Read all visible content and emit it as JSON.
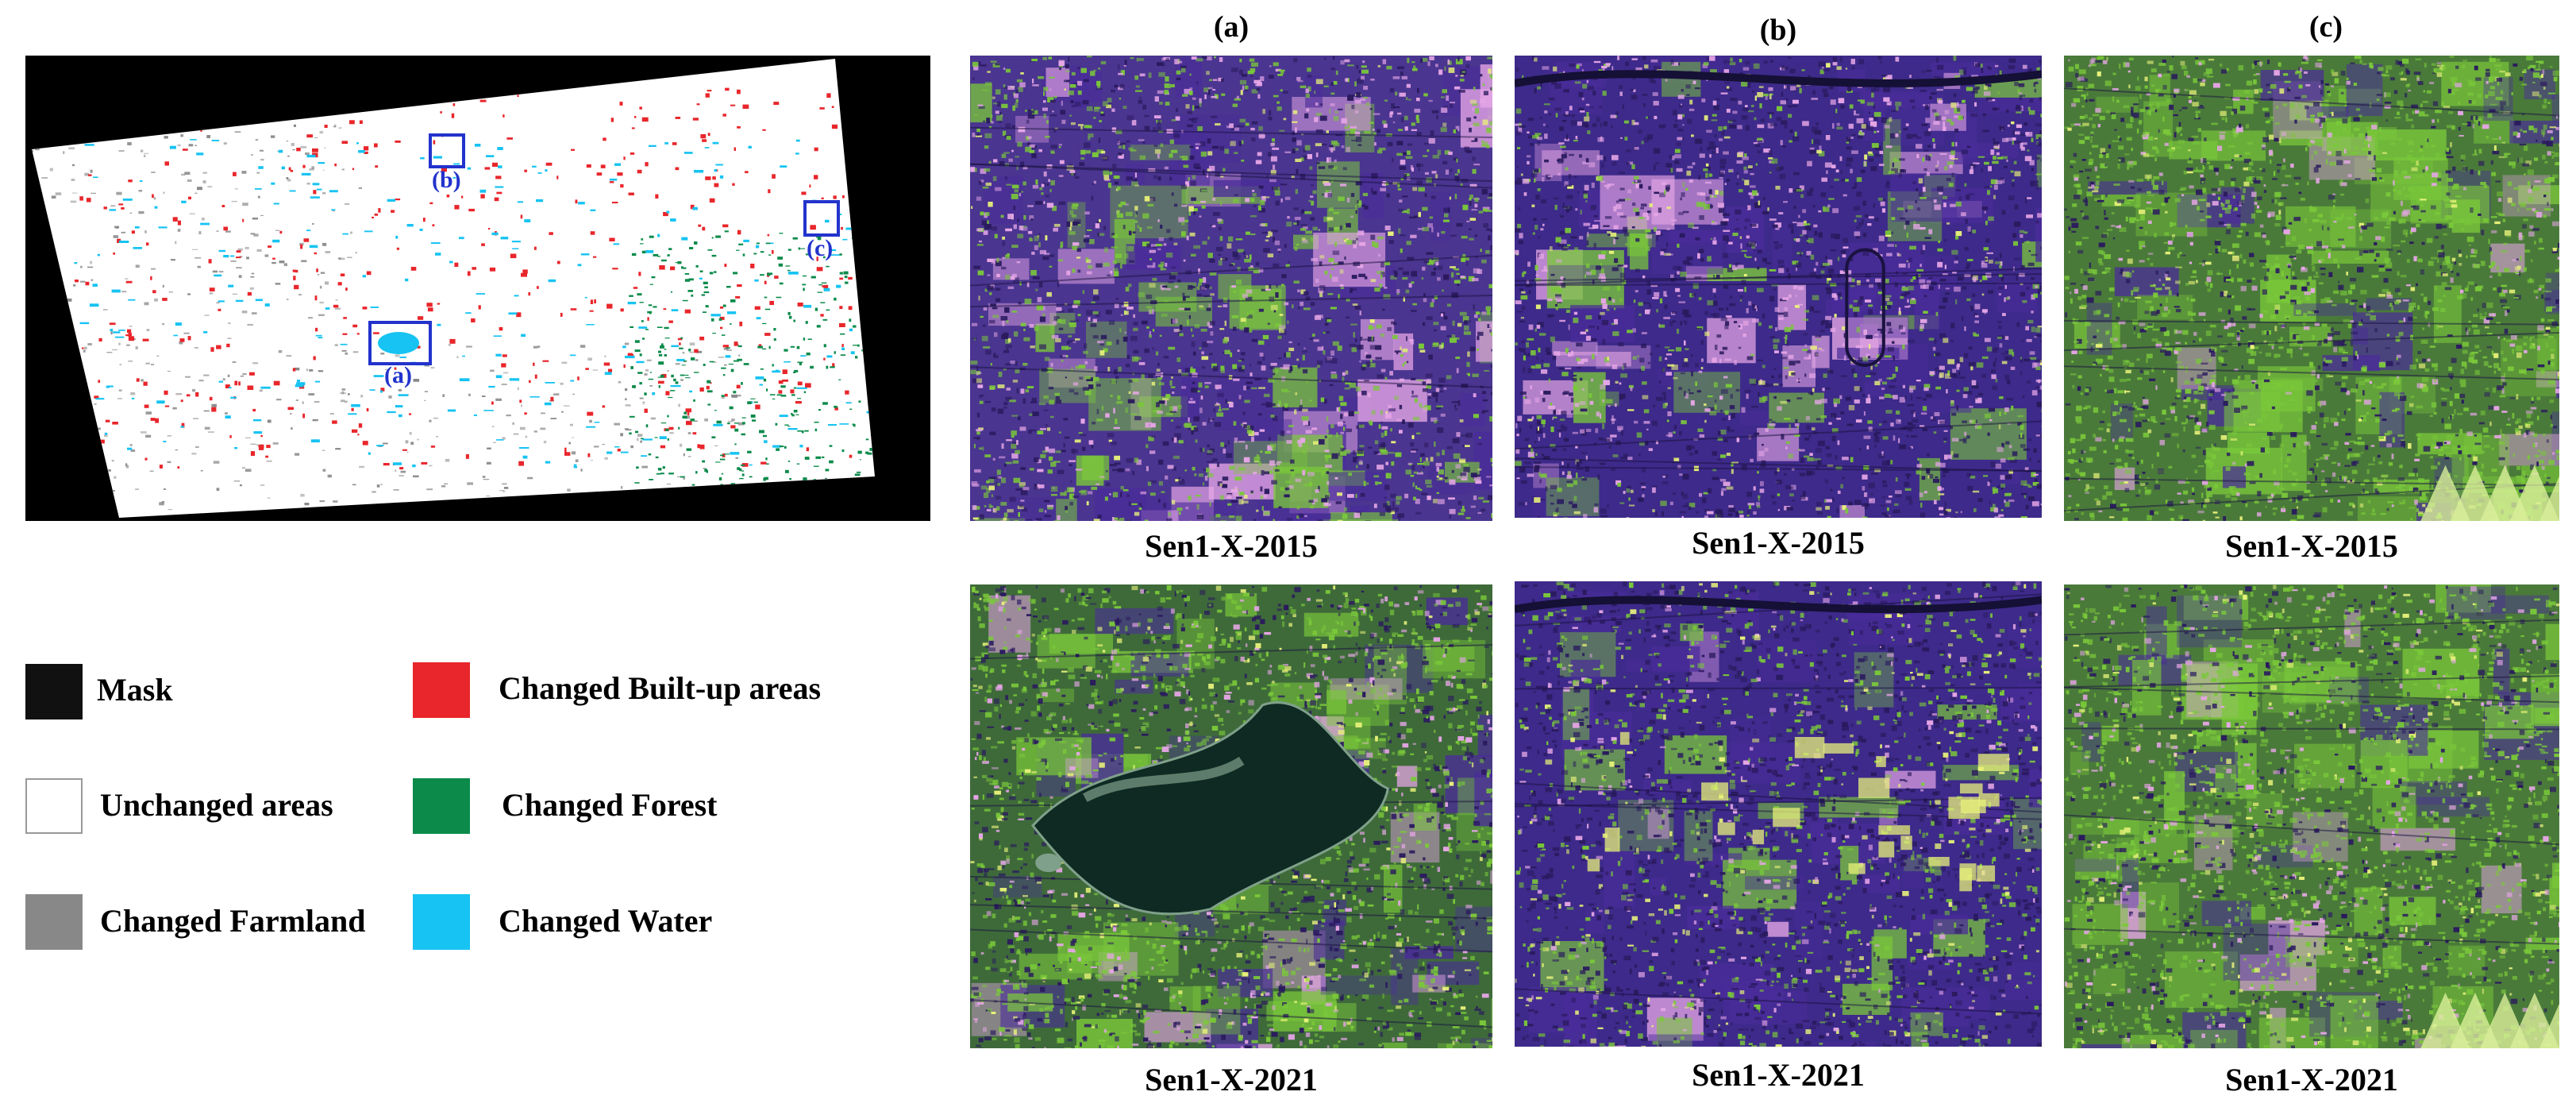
{
  "overview": {
    "roi_labels": [
      "(a)",
      "(b)",
      "(c)"
    ]
  },
  "legend": {
    "items": [
      {
        "label": "Mask",
        "color": "#111111"
      },
      {
        "label": "Changed Built-up areas",
        "color": "#e8262b"
      },
      {
        "label": "Unchanged areas",
        "color": "#ffffff"
      },
      {
        "label": "Changed Forest",
        "color": "#0b8a4a"
      },
      {
        "label": "Changed Farmland",
        "color": "#888888"
      },
      {
        "label": "Changed Water",
        "color": "#16c3f2"
      }
    ]
  },
  "columns": [
    {
      "title": "(a)",
      "top_caption": "Sen1-X-2015",
      "bottom_caption": "Sen1-X-2021"
    },
    {
      "title": "(b)",
      "top_caption": "Sen1-X-2015",
      "bottom_caption": "Sen1-X-2021"
    },
    {
      "title": "(c)",
      "top_caption": "Sen1-X-2015",
      "bottom_caption": "Sen1-X-2021"
    }
  ],
  "colors": {
    "sar_purple": "#4a2c9a",
    "sar_green": "#7ac83a",
    "sar_pink": "#e6a6e6",
    "sar_yellow": "#e8f27a",
    "water_dark": "#0e2a22",
    "roi_box": "#2233cc"
  }
}
